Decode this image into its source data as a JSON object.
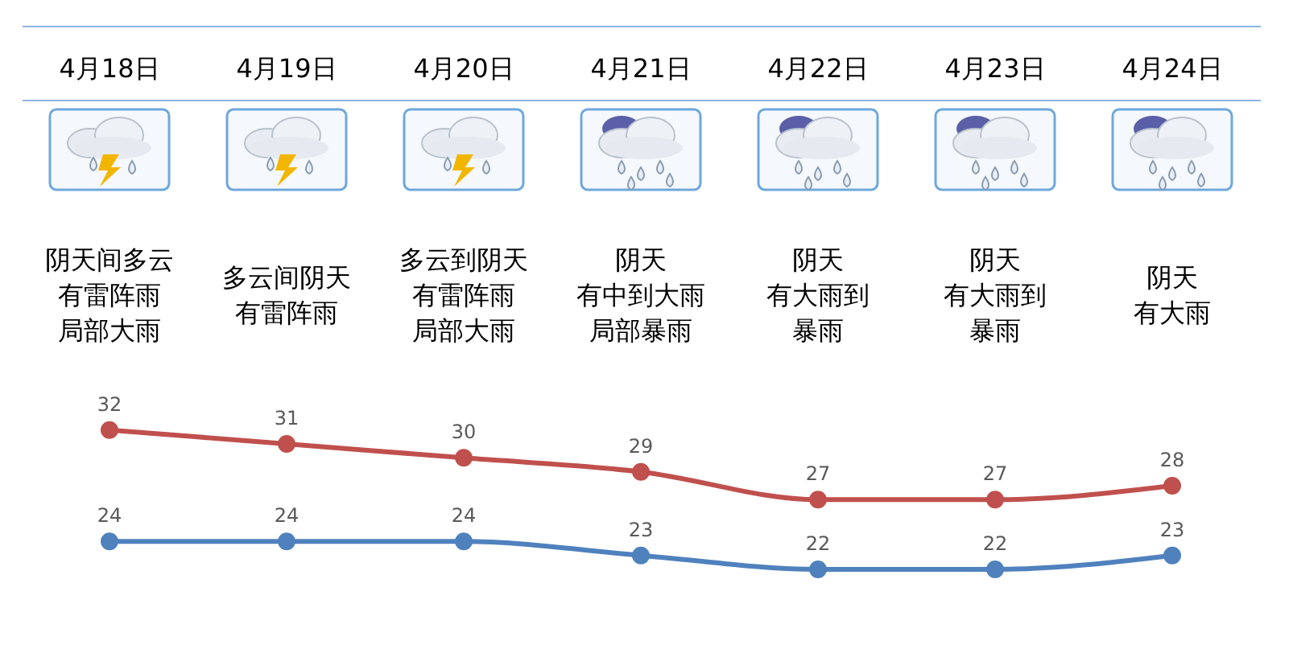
{
  "chart_data": {
    "type": "line",
    "categories": [
      "4月18日",
      "4月19日",
      "4月20日",
      "4月21日",
      "4月22日",
      "4月23日",
      "4月24日"
    ],
    "series": [
      {
        "color": "#c0504d",
        "values": [
          32,
          31,
          30,
          29,
          27,
          27,
          28
        ]
      },
      {
        "color": "#4f81bd",
        "values": [
          24,
          24,
          24,
          23,
          22,
          22,
          23
        ]
      }
    ],
    "annotations": [
      "阴天间多云有雷阵雨局部大雨",
      "多云间阴天有雷阵雨",
      "多云到阴天有雷阵雨局部大雨",
      "阴天有中到大雨局部暴雨",
      "阴天有大雨到暴雨",
      "阴天有大雨到暴雨",
      "阴天有大雨"
    ],
    "data_labels": true,
    "marker": "circle",
    "line_style": "solid",
    "tick_labels": "x"
  }
}
